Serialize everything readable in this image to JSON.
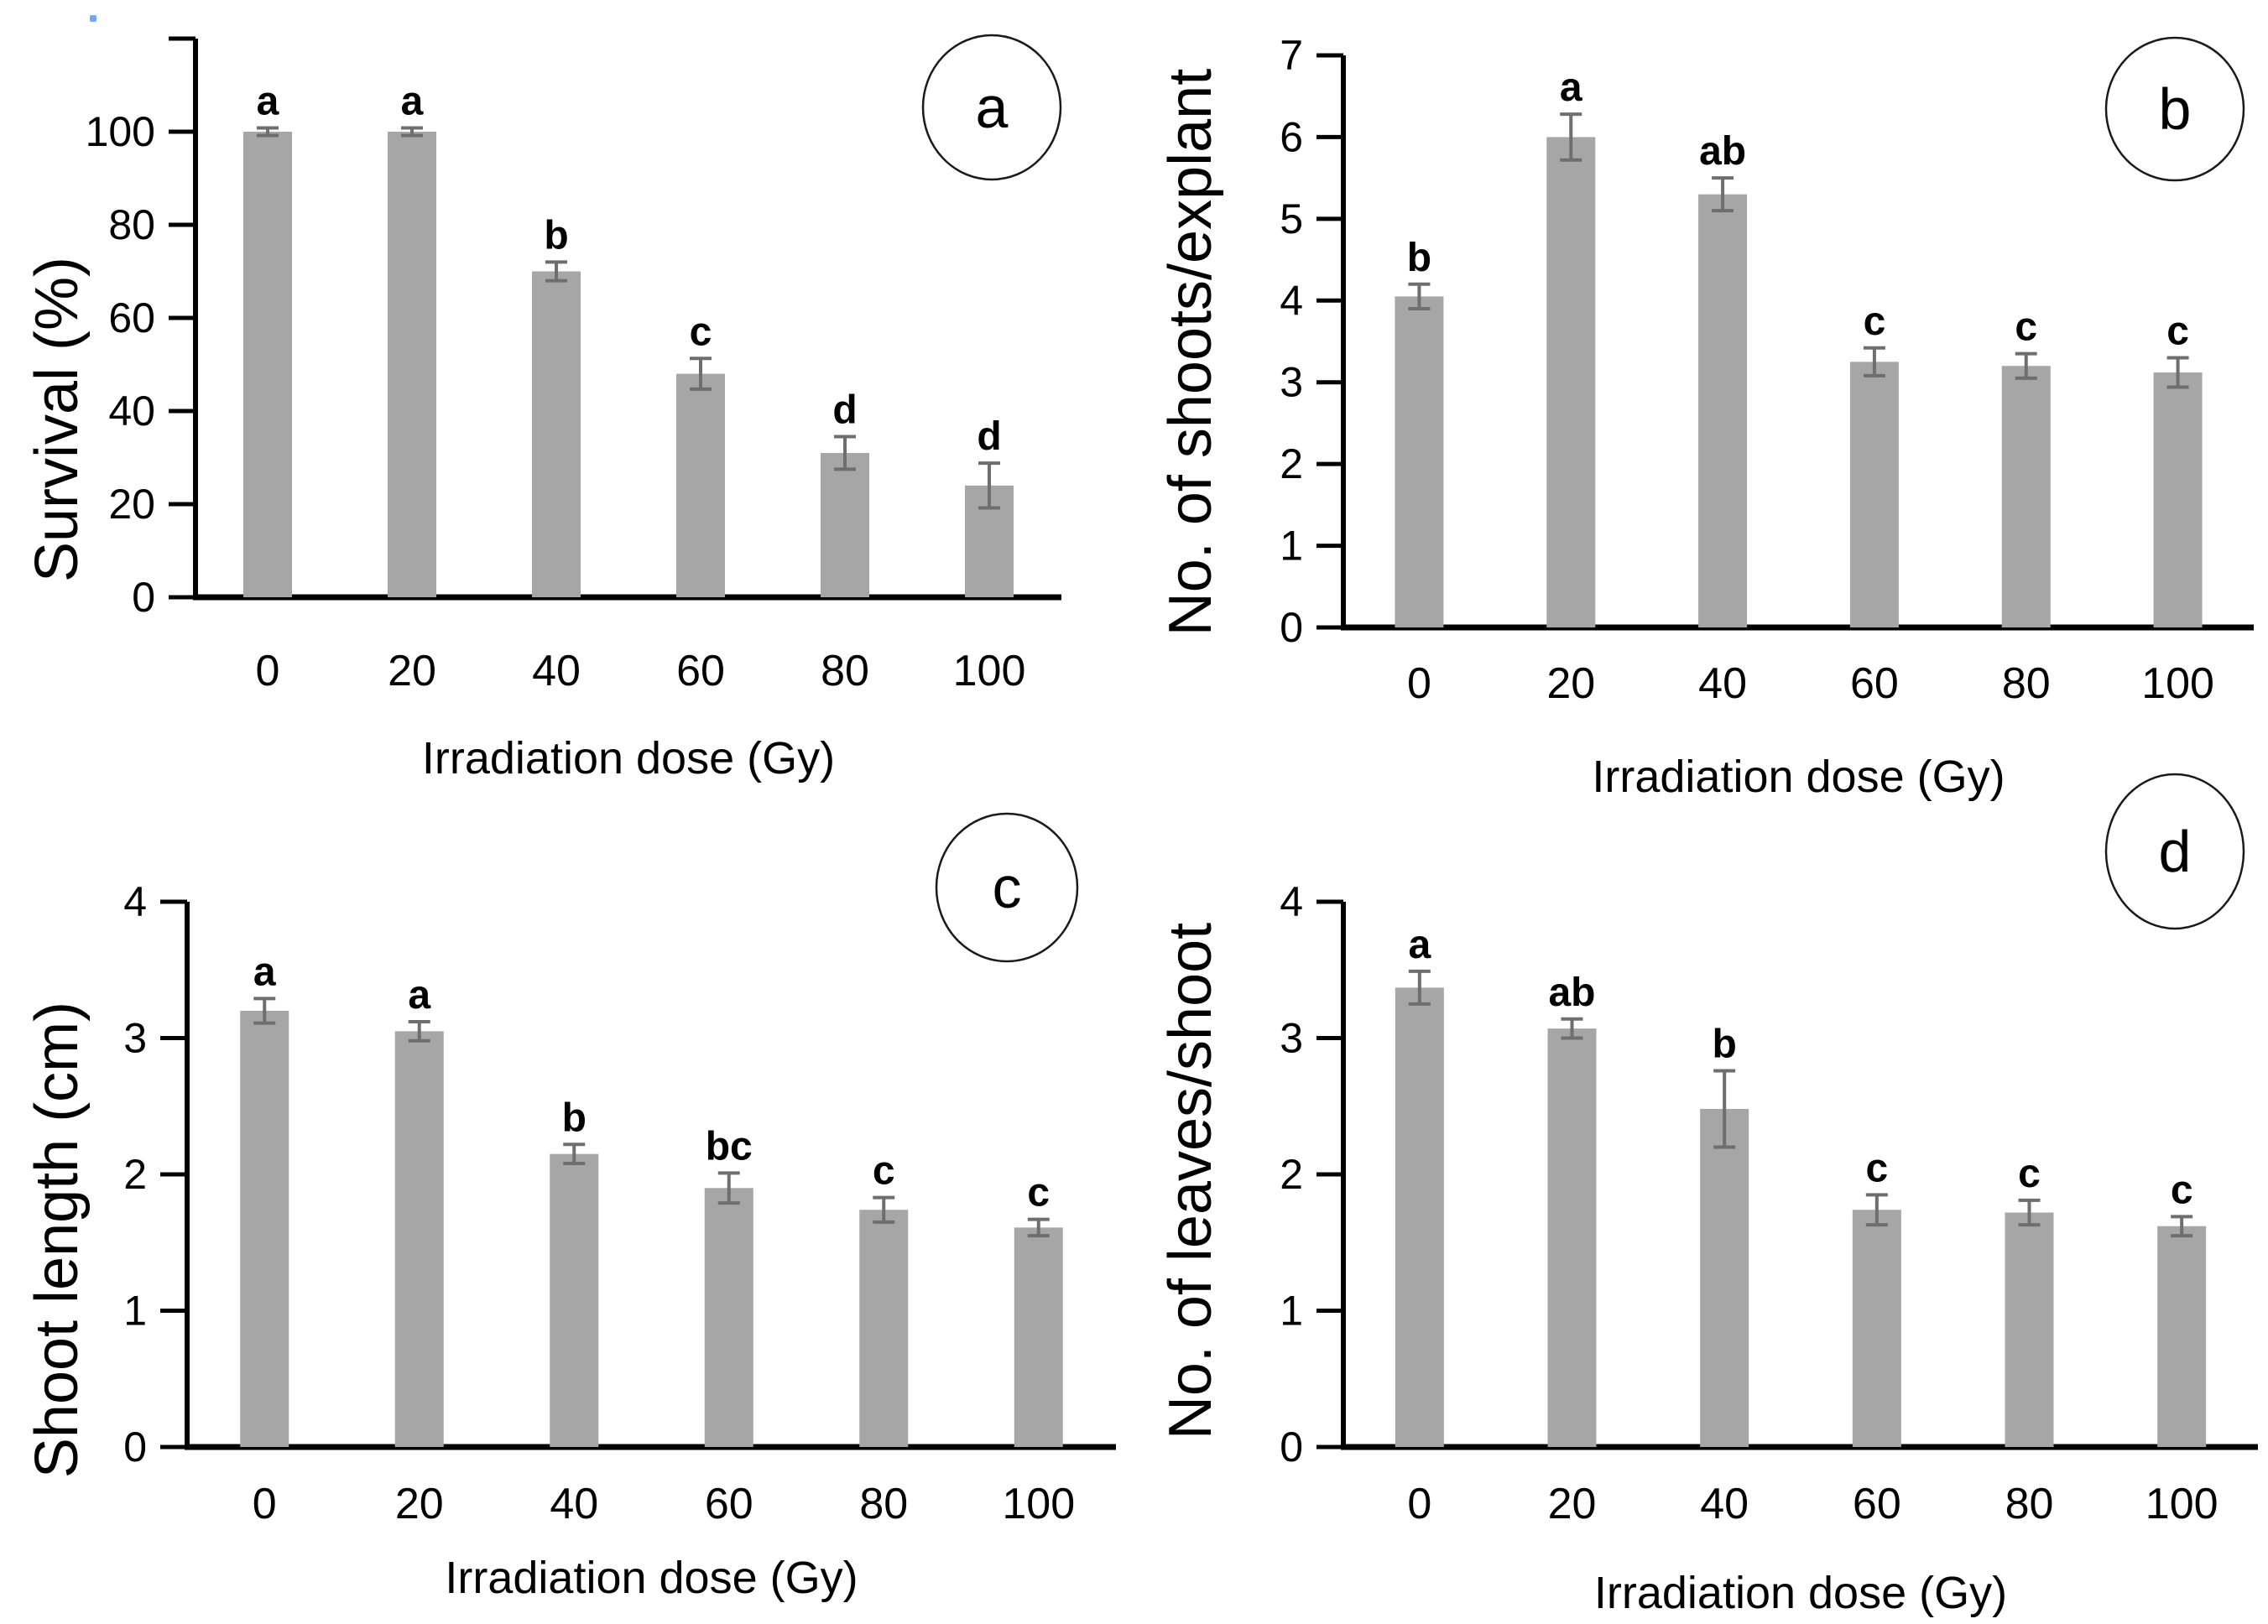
{
  "figure": {
    "bar_color": "#a6a6a6",
    "error_bar_color": "#6e6e6e",
    "axis_color": "#000000",
    "circle_stroke_color": "#1a1a1a",
    "stray_dot": {
      "color": "#6fa8f5"
    }
  },
  "chart_data": [
    {
      "type": "bar",
      "panel_label": "a",
      "ylabel": "Survival (%)",
      "xlabel": "Irradiation dose (Gy)",
      "categories": [
        "0",
        "20",
        "40",
        "60",
        "80",
        "100"
      ],
      "values": [
        100,
        100,
        70,
        48,
        31,
        24
      ],
      "errors": [
        0.8,
        0.8,
        2,
        3.3,
        3.5,
        4.8
      ],
      "sig_letters": [
        "a",
        "a",
        "b",
        "c",
        "d",
        "d"
      ],
      "yticks": [
        0,
        20,
        40,
        60,
        80,
        100
      ],
      "ylim": [
        0,
        120
      ],
      "axis_top_tick_unlabeled": true,
      "grid": "off",
      "legend": "none"
    },
    {
      "type": "bar",
      "panel_label": "b",
      "ylabel": "No. of shoots/explant",
      "xlabel": "Irradiation dose (Gy)",
      "categories": [
        "0",
        "20",
        "40",
        "60",
        "80",
        "100"
      ],
      "values": [
        4.05,
        6.0,
        5.3,
        3.25,
        3.2,
        3.12
      ],
      "errors": [
        0.15,
        0.28,
        0.2,
        0.17,
        0.15,
        0.18
      ],
      "sig_letters": [
        "b",
        "a",
        "ab",
        "c",
        "c",
        "c"
      ],
      "yticks": [
        0,
        1,
        2,
        3,
        4,
        5,
        6,
        7
      ],
      "ylim": [
        0,
        7
      ],
      "axis_top_tick_unlabeled": false,
      "grid": "off",
      "legend": "none"
    },
    {
      "type": "bar",
      "panel_label": "c",
      "ylabel": "Shoot length (cm)",
      "xlabel": "Irradiation dose (Gy)",
      "categories": [
        "0",
        "20",
        "40",
        "60",
        "80",
        "100"
      ],
      "values": [
        3.2,
        3.05,
        2.15,
        1.9,
        1.74,
        1.61
      ],
      "errors": [
        0.09,
        0.07,
        0.07,
        0.11,
        0.09,
        0.06
      ],
      "sig_letters": [
        "a",
        "a",
        "b",
        "bc",
        "c",
        "c"
      ],
      "yticks": [
        0,
        1,
        2,
        3,
        4
      ],
      "ylim": [
        0,
        4
      ],
      "axis_top_tick_unlabeled": false,
      "grid": "off",
      "legend": "none"
    },
    {
      "type": "bar",
      "panel_label": "d",
      "ylabel": "No. of leaves/shoot",
      "xlabel": "Irradiation dose (Gy)",
      "categories": [
        "0",
        "20",
        "40",
        "60",
        "80",
        "100"
      ],
      "values": [
        3.37,
        3.07,
        2.48,
        1.74,
        1.72,
        1.62
      ],
      "errors": [
        0.12,
        0.07,
        0.28,
        0.11,
        0.09,
        0.07
      ],
      "sig_letters": [
        "a",
        "ab",
        "b",
        "c",
        "c",
        "c"
      ],
      "yticks": [
        0,
        1,
        2,
        3,
        4
      ],
      "ylim": [
        0,
        4
      ],
      "axis_top_tick_unlabeled": false,
      "grid": "off",
      "legend": "none"
    }
  ]
}
